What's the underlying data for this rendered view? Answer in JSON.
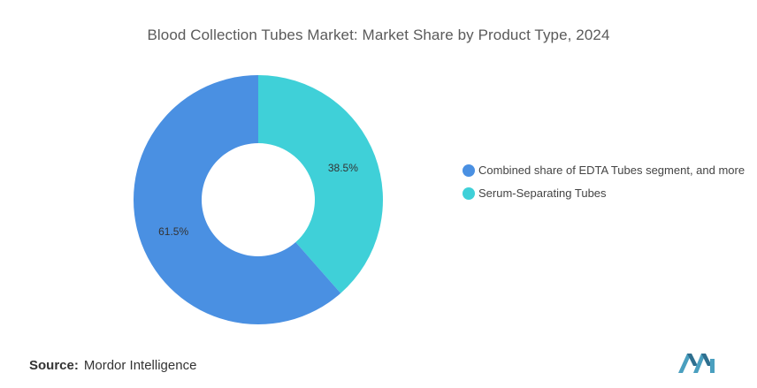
{
  "chart_data": {
    "type": "pie",
    "title": "Blood Collection Tubes Market: Market Share by Product Type, 2024",
    "categories": [
      "Combined share of EDTA Tubes segment, and more",
      "Serum-Separating Tubes"
    ],
    "values": [
      61.5,
      38.5
    ],
    "value_labels": [
      "61.5%",
      "38.5%"
    ],
    "colors": [
      "#4A90E2",
      "#3FD0D8"
    ],
    "donut": true,
    "legend_position": "right"
  },
  "source": {
    "label": "Source:",
    "text": "Mordor Intelligence"
  },
  "logo": {
    "icon": "mordor-intelligence-logo",
    "color": "#4A9FBF"
  }
}
